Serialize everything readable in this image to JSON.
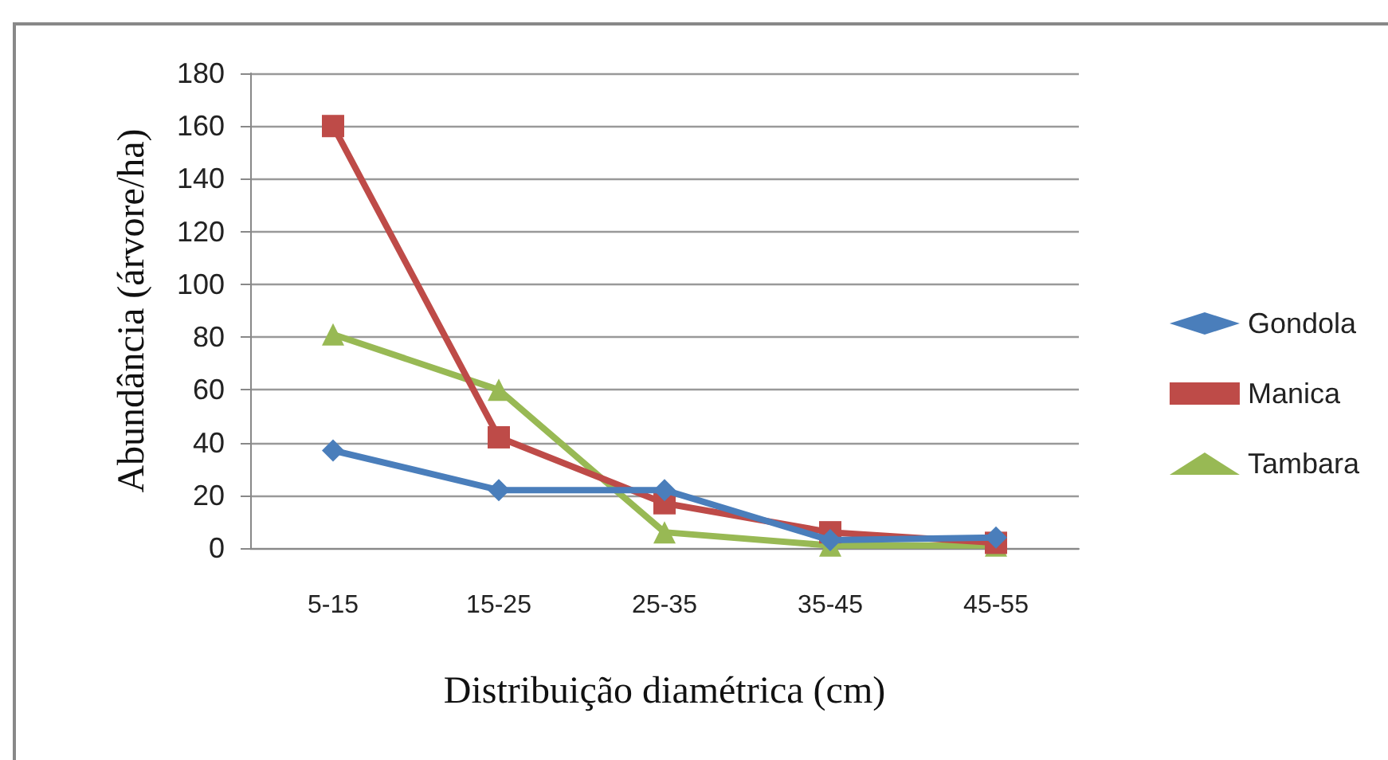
{
  "chart_data": {
    "type": "line",
    "xlabel": "Distribuição diamétrica (cm)",
    "ylabel": "Abundância (árvore/ha)",
    "categories": [
      "5-15",
      "15-25",
      "25-35",
      "35-45",
      "45-55"
    ],
    "series": [
      {
        "name": "Gondola",
        "color": "#4a7ebb",
        "marker": "diamond",
        "values": [
          37,
          22,
          22,
          3,
          4
        ]
      },
      {
        "name": "Manica",
        "color": "#be4b48",
        "marker": "square",
        "values": [
          160,
          42,
          17,
          6,
          2
        ]
      },
      {
        "name": "Tambara",
        "color": "#98b954",
        "marker": "triangle",
        "values": [
          81,
          60,
          6,
          1,
          1
        ]
      }
    ],
    "ylim": [
      0,
      180
    ],
    "yticks": [
      0,
      20,
      40,
      60,
      80,
      100,
      120,
      140,
      160,
      180
    ],
    "grid": "y",
    "legend": "right",
    "line_style": "solid"
  }
}
